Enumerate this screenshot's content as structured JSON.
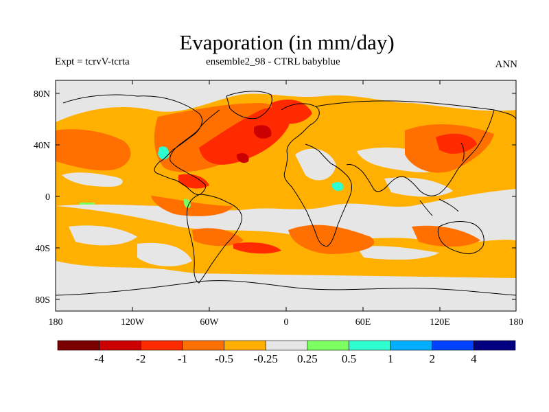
{
  "title": "Evaporation (in mm/day)",
  "subtitle_left": "Expt = tcrvV-tcrta",
  "subtitle_center": "ensemble2_98 - CTRL babyblue",
  "subtitle_right": "ANN",
  "map": {
    "ocean_color": "#e6e6e6",
    "lat_labels": [
      "80N",
      "40N",
      "0",
      "40S",
      "80S"
    ],
    "lon_labels": [
      "180",
      "120W",
      "60W",
      "0",
      "60E",
      "120E",
      "180"
    ]
  },
  "colorbar": {
    "labels": [
      "-4",
      "-2",
      "-1",
      "-0.5",
      "-0.25",
      "0.25",
      "0.5",
      "1",
      "2",
      "4"
    ],
    "colors": [
      "#7a0000",
      "#cc0000",
      "#ff2a00",
      "#ff7000",
      "#ffb000",
      "#e6e6e6",
      "#7cff60",
      "#2effd0",
      "#00b0ff",
      "#0040ff",
      "#000080"
    ]
  }
}
